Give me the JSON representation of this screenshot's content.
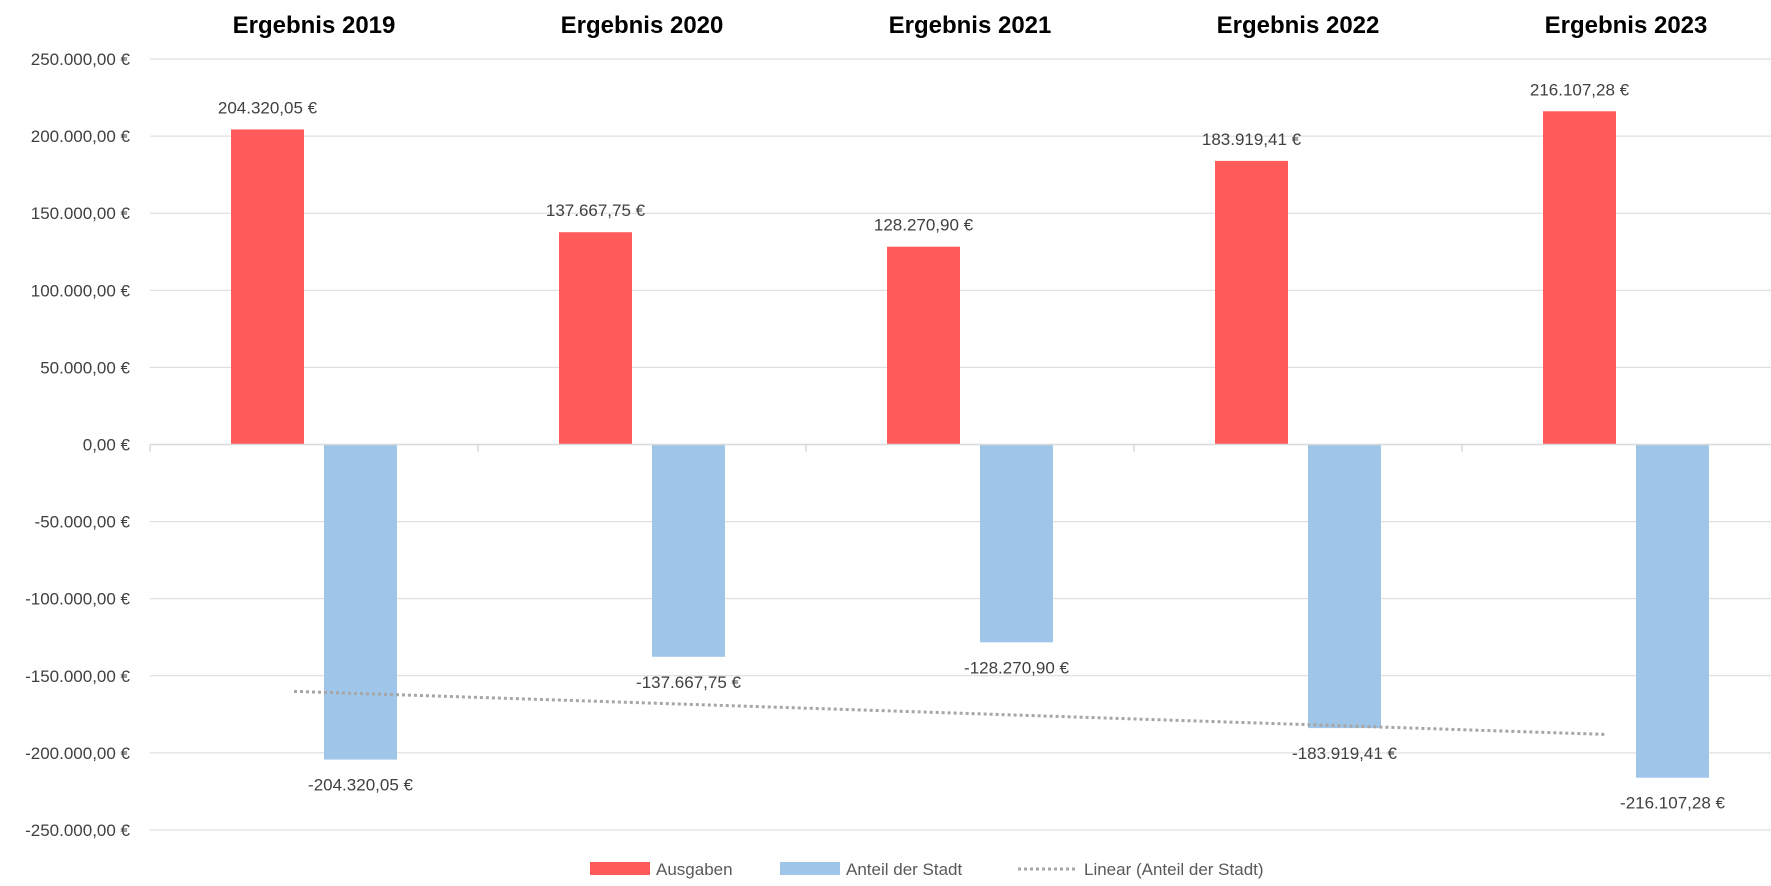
{
  "chart_data": {
    "type": "bar",
    "categories": [
      "Ergebnis 2019",
      "Ergebnis 2020",
      "Ergebnis 2021",
      "Ergebnis 2022",
      "Ergebnis 2023"
    ],
    "series": [
      {
        "name": "Ausgaben",
        "color": "#ff5b5b",
        "values": [
          204320.05,
          137667.75,
          128270.9,
          183919.41,
          216107.28
        ],
        "labels": [
          "204.320,05 €",
          "137.667,75 €",
          "128.270,90 €",
          "183.919,41 €",
          "216.107,28 €"
        ]
      },
      {
        "name": "Anteil der Stadt",
        "color": "#9fc5e8",
        "values": [
          -204320.05,
          -137667.75,
          -128270.9,
          -183919.41,
          -216107.28
        ],
        "labels": [
          "-204.320,05 €",
          "-137.667,75 €",
          "-128.270,90 €",
          "-183.919,41 €",
          "-216.107,28 €"
        ]
      }
    ],
    "trendline": {
      "name": "Linear (Anteil der Stadt)",
      "type": "linear",
      "of_series": "Anteil der Stadt",
      "color": "#a6a6a6"
    },
    "yticks": [
      250000,
      200000,
      150000,
      100000,
      50000,
      0,
      -50000,
      -100000,
      -150000,
      -200000,
      -250000
    ],
    "ytick_labels": [
      "250.000,00 €",
      "200.000,00 €",
      "150.000,00 €",
      "100.000,00 €",
      "50.000,00 €",
      "0,00 €",
      "-50.000,00 €",
      "-100.000,00 €",
      "-150.000,00 €",
      "-200.000,00 €",
      "-250.000,00 €"
    ],
    "ylim": [
      -250000,
      250000
    ],
    "category_labels_position": "top",
    "grid": true,
    "legend": "bottom",
    "title": "",
    "xlabel": "",
    "ylabel": ""
  }
}
